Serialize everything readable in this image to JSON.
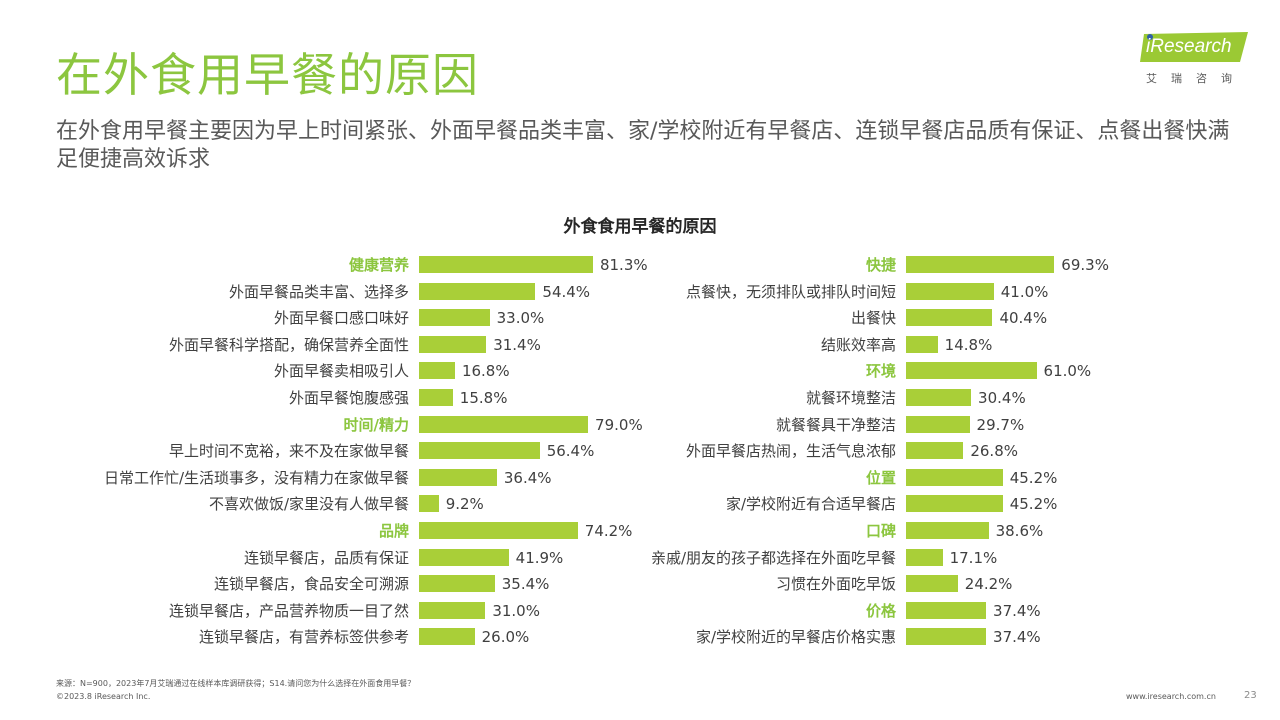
{
  "title": "在外食用早餐的原因",
  "subtitle": "在外食用早餐主要因为早上时间紧张、外面早餐品类丰富、家/学校附近有早餐店、连锁早餐店品质有保证、点餐出餐快满足便捷高效诉求",
  "logo": {
    "brand": "iResearch",
    "cn": "艾瑞咨询"
  },
  "colors": {
    "accent": "#8cc63f",
    "bar": "#a9cf38"
  },
  "chart_data": {
    "type": "bar",
    "orientation": "horizontal",
    "title": "外食食用早餐的原因",
    "unit": "%",
    "panels": [
      {
        "rows": [
          {
            "label": "健康营养",
            "value": 81.3,
            "value_text": "81.3%",
            "category": true
          },
          {
            "label": "外面早餐品类丰富、选择多",
            "value": 54.4,
            "value_text": "54.4%",
            "category": false
          },
          {
            "label": "外面早餐口感口味好",
            "value": 33.0,
            "value_text": "33.0%",
            "category": false
          },
          {
            "label": "外面早餐科学搭配，确保营养全面性",
            "value": 31.4,
            "value_text": "31.4%",
            "category": false
          },
          {
            "label": "外面早餐卖相吸引人",
            "value": 16.8,
            "value_text": "16.8%",
            "category": false
          },
          {
            "label": "外面早餐饱腹感强",
            "value": 15.8,
            "value_text": "15.8%",
            "category": false
          },
          {
            "label": "时间/精力",
            "value": 79.0,
            "value_text": "79.0%",
            "category": true
          },
          {
            "label": "早上时间不宽裕，来不及在家做早餐",
            "value": 56.4,
            "value_text": "56.4%",
            "category": false
          },
          {
            "label": "日常工作忙/生活琐事多，没有精力在家做早餐",
            "value": 36.4,
            "value_text": "36.4%",
            "category": false
          },
          {
            "label": "不喜欢做饭/家里没有人做早餐",
            "value": 9.2,
            "value_text": "9.2%",
            "category": false
          },
          {
            "label": "品牌",
            "value": 74.2,
            "value_text": "74.2%",
            "category": true
          },
          {
            "label": "连锁早餐店，品质有保证",
            "value": 41.9,
            "value_text": "41.9%",
            "category": false
          },
          {
            "label": "连锁早餐店，食品安全可溯源",
            "value": 35.4,
            "value_text": "35.4%",
            "category": false
          },
          {
            "label": "连锁早餐店，产品营养物质一目了然",
            "value": 31.0,
            "value_text": "31.0%",
            "category": false
          },
          {
            "label": "连锁早餐店，有营养标签供参考",
            "value": 26.0,
            "value_text": "26.0%",
            "category": false
          }
        ]
      },
      {
        "rows": [
          {
            "label": "快捷",
            "value": 69.3,
            "value_text": "69.3%",
            "category": true
          },
          {
            "label": "点餐快，无须排队或排队时间短",
            "value": 41.0,
            "value_text": "41.0%",
            "category": false
          },
          {
            "label": "出餐快",
            "value": 40.4,
            "value_text": "40.4%",
            "category": false
          },
          {
            "label": "结账效率高",
            "value": 14.8,
            "value_text": "14.8%",
            "category": false
          },
          {
            "label": "环境",
            "value": 61.0,
            "value_text": "61.0%",
            "category": true
          },
          {
            "label": "就餐环境整洁",
            "value": 30.4,
            "value_text": "30.4%",
            "category": false
          },
          {
            "label": "就餐餐具干净整洁",
            "value": 29.7,
            "value_text": "29.7%",
            "category": false
          },
          {
            "label": "外面早餐店热闹，生活气息浓郁",
            "value": 26.8,
            "value_text": "26.8%",
            "category": false
          },
          {
            "label": "位置",
            "value": 45.2,
            "value_text": "45.2%",
            "category": true
          },
          {
            "label": "家/学校附近有合适早餐店",
            "value": 45.2,
            "value_text": "45.2%",
            "category": false
          },
          {
            "label": "口碑",
            "value": 38.6,
            "value_text": "38.6%",
            "category": true
          },
          {
            "label": "亲戚/朋友的孩子都选择在外面吃早餐",
            "value": 17.1,
            "value_text": "17.1%",
            "category": false
          },
          {
            "label": "习惯在外面吃早饭",
            "value": 24.2,
            "value_text": "24.2%",
            "category": false
          },
          {
            "label": "价格",
            "value": 37.4,
            "value_text": "37.4%",
            "category": true
          },
          {
            "label": "家/学校附近的早餐店价格实惠",
            "value": 37.4,
            "value_text": "37.4%",
            "category": false
          }
        ]
      }
    ]
  },
  "footer": {
    "source": "来源：N=900，2023年7月艾瑞通过在线样本库调研获得；S14.请问您为什么选择在外面食用早餐？",
    "copyright": "©2023.8 iResearch Inc.",
    "website": "www.iresearch.com.cn",
    "page": "23"
  }
}
